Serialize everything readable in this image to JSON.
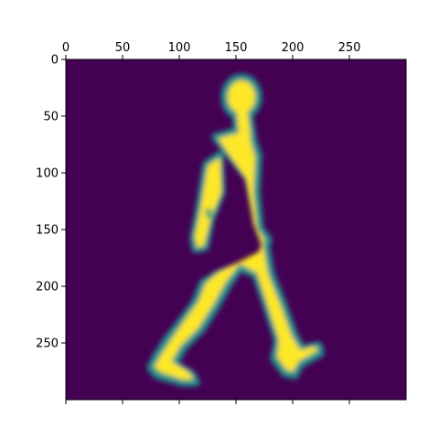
{
  "chart_data": {
    "type": "heatmap",
    "title": "",
    "xlabel": "",
    "ylabel": "",
    "x_axis_position": "top",
    "xlim": [
      0,
      300
    ],
    "ylim": [
      300,
      0
    ],
    "x_ticks": [
      0,
      50,
      100,
      150,
      200,
      250
    ],
    "y_ticks": [
      0,
      50,
      100,
      150,
      200,
      250
    ],
    "grid": false,
    "colormap": "viridis",
    "colors": {
      "background": "#440154",
      "foreground": "#fde725",
      "edge": "#21918c"
    },
    "description": "binary silhouette mask of a walking person (value 1 inside the figure, 0 elsewhere)"
  }
}
